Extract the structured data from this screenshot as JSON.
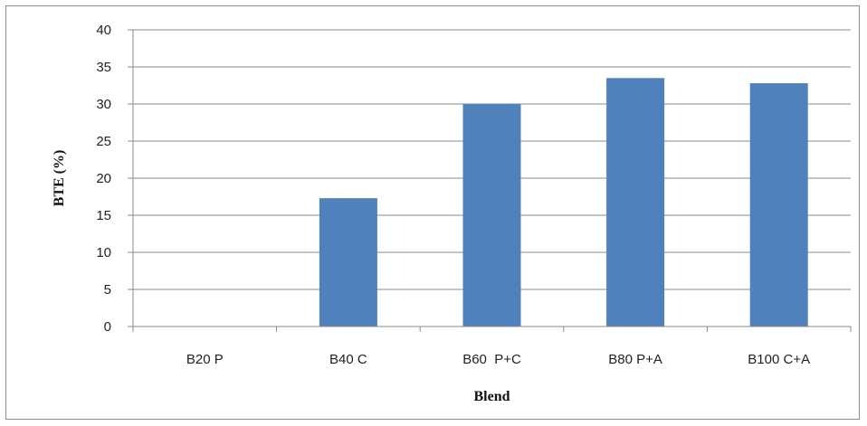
{
  "chart_data": {
    "type": "bar",
    "categories": [
      "B20 P",
      "B40 C",
      "B60  P+C",
      "B80 P+A",
      "B100 C+A"
    ],
    "values": [
      0,
      17.3,
      30,
      33.5,
      32.8
    ],
    "xlabel": "Blend",
    "ylabel": "BTE (%)",
    "ylim": [
      0,
      40
    ],
    "yticks": [
      0,
      5,
      10,
      15,
      20,
      25,
      30,
      35,
      40
    ],
    "grid": true,
    "legend": "none",
    "bar_color": "#4F81BD"
  }
}
